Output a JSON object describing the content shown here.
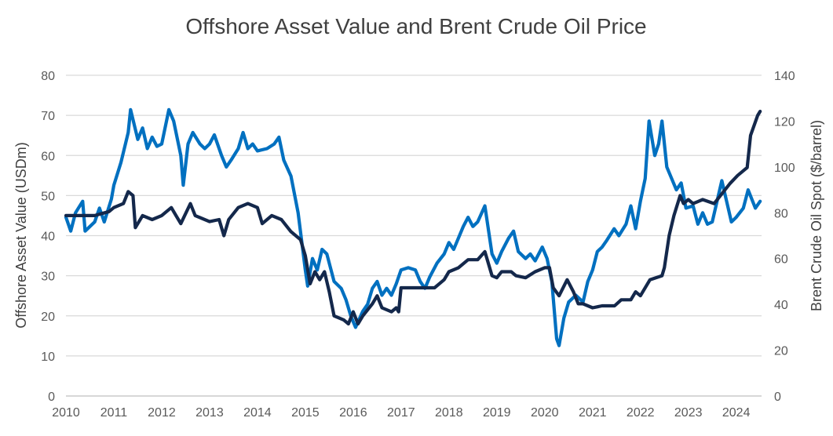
{
  "chart_data": {
    "type": "line",
    "title": "Offshore Asset Value and Brent Crude Oil Price",
    "xlabel": "",
    "ylabel_left": "Offshore Asset Value (USDm)",
    "ylabel_right": "Brent Crude Oil Spot ($/barrel)",
    "xlim": [
      2010,
      2024.53
    ],
    "ylim_left": [
      0,
      80
    ],
    "ylim_right": [
      0,
      140
    ],
    "x_ticks": [
      "2010",
      "2011",
      "2012",
      "2013",
      "2014",
      "2015",
      "2016",
      "2017",
      "2018",
      "2019",
      "2020",
      "2021",
      "2022",
      "2023",
      "2024"
    ],
    "y_left_ticks": [
      "0",
      "10",
      "20",
      "30",
      "40",
      "50",
      "60",
      "70",
      "80"
    ],
    "y_right_ticks": [
      "0",
      "20",
      "40",
      "60",
      "80",
      "100",
      "120",
      "140"
    ],
    "grid": true,
    "legend": "none",
    "series": [
      {
        "axis": "right",
        "color": "#0070C0",
        "x": [
          2010.0,
          2010.1,
          2010.2,
          2010.35,
          2010.4,
          2010.6,
          2010.7,
          2010.8,
          2010.95,
          2011.0,
          2011.15,
          2011.3,
          2011.35,
          2011.5,
          2011.6,
          2011.7,
          2011.8,
          2011.9,
          2012.0,
          2012.15,
          2012.25,
          2012.4,
          2012.45,
          2012.55,
          2012.65,
          2012.8,
          2012.9,
          2013.0,
          2013.1,
          2013.25,
          2013.35,
          2013.45,
          2013.6,
          2013.7,
          2013.8,
          2013.9,
          2014.0,
          2014.2,
          2014.35,
          2014.45,
          2014.55,
          2014.7,
          2014.85,
          2015.0,
          2015.05,
          2015.15,
          2015.25,
          2015.35,
          2015.45,
          2015.6,
          2015.75,
          2015.85,
          2015.95,
          2016.05,
          2016.2,
          2016.3,
          2016.4,
          2016.5,
          2016.6,
          2016.7,
          2016.8,
          2016.9,
          2017.0,
          2017.15,
          2017.3,
          2017.4,
          2017.5,
          2017.6,
          2017.75,
          2017.9,
          2018.0,
          2018.1,
          2018.3,
          2018.4,
          2018.5,
          2018.6,
          2018.75,
          2018.9,
          2019.0,
          2019.1,
          2019.25,
          2019.35,
          2019.45,
          2019.6,
          2019.7,
          2019.8,
          2019.95,
          2020.05,
          2020.15,
          2020.25,
          2020.3,
          2020.4,
          2020.5,
          2020.65,
          2020.8,
          2020.9,
          2021.0,
          2021.1,
          2021.2,
          2021.3,
          2021.45,
          2021.55,
          2021.7,
          2021.8,
          2021.9,
          2022.0,
          2022.1,
          2022.18,
          2022.3,
          2022.38,
          2022.45,
          2022.55,
          2022.65,
          2022.75,
          2022.85,
          2022.95,
          2023.1,
          2023.2,
          2023.3,
          2023.4,
          2023.5,
          2023.6,
          2023.7,
          2023.8,
          2023.9,
          2024.0,
          2024.15,
          2024.25,
          2024.4,
          2024.5
        ],
        "values": [
          78,
          72,
          80,
          85,
          72,
          76,
          82,
          76,
          86,
          92,
          102,
          115,
          125,
          112,
          117,
          108,
          113,
          109,
          110,
          125,
          120,
          105,
          92,
          110,
          115,
          110,
          108,
          110,
          114,
          105,
          100,
          103,
          108,
          115,
          108,
          110,
          107,
          108,
          110,
          113,
          103,
          96,
          80,
          55,
          48,
          60,
          55,
          64,
          62,
          50,
          47,
          42,
          35,
          30,
          37,
          40,
          47,
          50,
          44,
          47,
          44,
          49,
          55,
          56,
          55,
          50,
          47,
          52,
          58,
          62,
          67,
          64,
          74,
          78,
          74,
          76,
          83,
          62,
          58,
          63,
          69,
          72,
          63,
          60,
          62,
          59,
          65,
          60,
          50,
          25,
          22,
          34,
          41,
          44,
          41,
          50,
          55,
          63,
          65,
          68,
          73,
          70,
          75,
          83,
          73,
          85,
          95,
          120,
          105,
          110,
          120,
          100,
          95,
          90,
          93,
          82,
          83,
          75,
          80,
          75,
          76,
          85,
          94,
          85,
          76,
          78,
          82,
          90,
          82,
          85
        ]
      },
      {
        "axis": "left",
        "color": "#14284B",
        "x": [
          2010.0,
          2010.3,
          2010.6,
          2010.9,
          2011.0,
          2011.2,
          2011.3,
          2011.4,
          2011.45,
          2011.6,
          2011.8,
          2012.0,
          2012.2,
          2012.3,
          2012.4,
          2012.6,
          2012.7,
          2013.0,
          2013.2,
          2013.3,
          2013.4,
          2013.6,
          2013.8,
          2014.0,
          2014.1,
          2014.3,
          2014.5,
          2014.7,
          2014.9,
          2015.0,
          2015.1,
          2015.2,
          2015.3,
          2015.4,
          2015.5,
          2015.6,
          2015.8,
          2015.9,
          2016.0,
          2016.1,
          2016.2,
          2016.4,
          2016.5,
          2016.6,
          2016.8,
          2016.9,
          2016.95,
          2017.0,
          2017.3,
          2017.5,
          2017.7,
          2017.9,
          2018.0,
          2018.2,
          2018.4,
          2018.6,
          2018.75,
          2018.9,
          2019.0,
          2019.1,
          2019.3,
          2019.4,
          2019.6,
          2019.8,
          2020.0,
          2020.1,
          2020.18,
          2020.3,
          2020.47,
          2020.6,
          2020.7,
          2020.8,
          2021.0,
          2021.2,
          2021.46,
          2021.6,
          2021.8,
          2021.9,
          2022.0,
          2022.2,
          2022.45,
          2022.5,
          2022.6,
          2022.7,
          2022.83,
          2022.9,
          2023.0,
          2023.1,
          2023.3,
          2023.54,
          2023.87,
          2024.03,
          2024.23,
          2024.3,
          2024.45,
          2024.5
        ],
        "values": [
          45,
          45,
          45,
          46,
          47,
          48,
          51,
          50,
          42,
          45,
          44,
          45,
          47,
          45,
          43,
          48,
          45,
          43.5,
          44,
          40,
          44,
          47,
          48,
          47,
          43,
          45,
          44,
          41,
          39,
          35,
          28,
          31,
          29,
          31,
          26,
          20,
          19,
          18,
          21,
          18,
          20,
          23,
          25,
          22,
          21,
          22,
          21,
          27,
          27,
          27,
          27,
          29,
          31,
          32,
          34,
          34,
          36,
          30,
          29.5,
          31,
          31,
          30,
          29.5,
          31,
          32,
          32,
          27,
          25,
          29,
          26,
          23,
          23,
          22,
          22.5,
          22.5,
          24,
          24,
          26,
          25,
          29,
          30,
          32,
          40,
          45,
          50,
          48,
          49,
          48,
          49,
          48,
          53,
          55,
          57,
          65,
          70,
          71
        ]
      }
    ]
  }
}
